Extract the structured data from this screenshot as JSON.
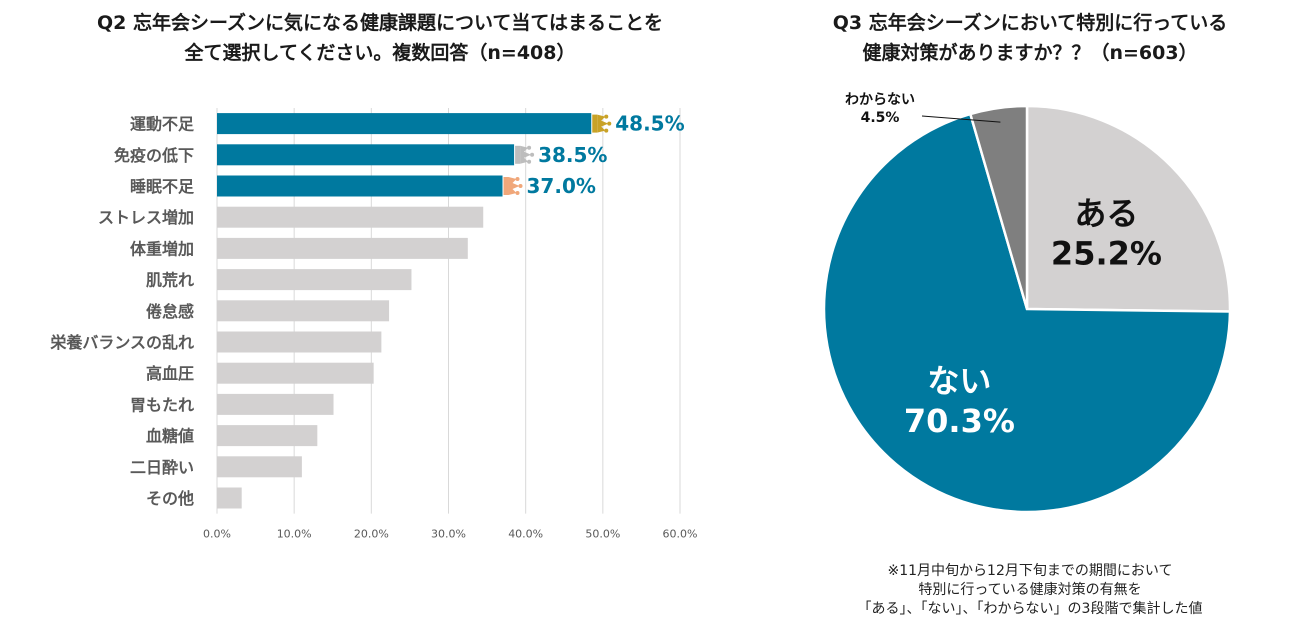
{
  "colors": {
    "highlight": "#00799f",
    "muted": "#d3d1d1",
    "unknown": "#7f7f7f",
    "gold": "#c9a227",
    "silver": "#bdbdbd",
    "bronze": "#f0a77a"
  },
  "q2": {
    "title_lines": [
      "Q2 忘年会シーズンに気になる健康課題について当てはまることを",
      "全て選択してください。複数回答（n=408）"
    ]
  },
  "q3": {
    "title_lines": [
      "Q3 忘年会シーズンにおいて特別に行っている",
      "健康対策がありますか？？（n=603）"
    ],
    "footnote_lines": [
      "※11月中旬から12月下旬までの期間において",
      "特別に行っている健康対策の有無を",
      "「ある」、「ない」、「わからない」の3段階で集計した値"
    ]
  },
  "chart_data": [
    {
      "type": "bar",
      "orientation": "horizontal",
      "title": "Q2 忘年会シーズンに気になる健康課題について当てはまることを全て選択してください。複数回答（n=408）",
      "categories": [
        "運動不足",
        "免疫の低下",
        "睡眠不足",
        "ストレス増加",
        "体重増加",
        "肌荒れ",
        "倦怠感",
        "栄養バランスの乱れ",
        "高血圧",
        "胃もたれ",
        "血糖値",
        "二日酔い",
        "その他"
      ],
      "values": [
        48.5,
        38.5,
        37.0,
        34.5,
        32.5,
        25.2,
        22.3,
        21.3,
        20.3,
        15.1,
        13.0,
        11.0,
        3.2
      ],
      "top3_labels": [
        "48.5%",
        "38.5%",
        "37.0%"
      ],
      "top3_ranks": [
        "gold",
        "silver",
        "bronze"
      ],
      "xlim": [
        0,
        60
      ],
      "ticks": [
        0,
        10,
        20,
        30,
        40,
        50,
        60
      ],
      "tick_labels": [
        "0.0%",
        "10.0%",
        "20.0%",
        "30.0%",
        "40.0%",
        "50.0%",
        "60.0%"
      ],
      "grid": true
    },
    {
      "type": "pie",
      "title": "Q3 忘年会シーズンにおいて特別に行っている健康対策がありますか？？（n=603）",
      "slices": [
        {
          "label": "ある",
          "value": 25.2,
          "value_label": "25.2%",
          "color": "#d3d1d1",
          "text_color": "#111111"
        },
        {
          "label": "ない",
          "value": 70.3,
          "value_label": "70.3%",
          "color": "#00799f",
          "text_color": "#ffffff"
        },
        {
          "label": "わからない",
          "value": 4.5,
          "value_label": "4.5%",
          "color": "#7f7f7f",
          "text_color": "#111111"
        }
      ]
    }
  ]
}
